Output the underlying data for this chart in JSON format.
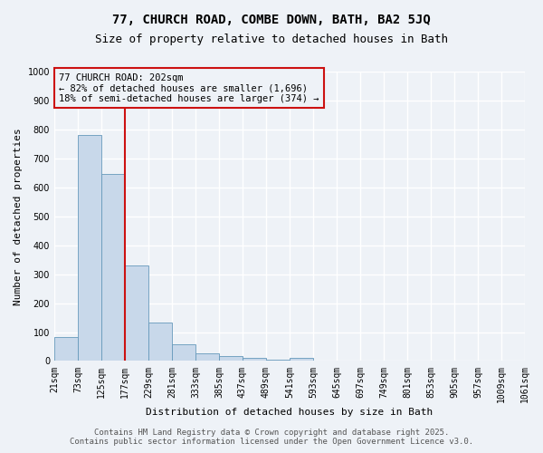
{
  "title1": "77, CHURCH ROAD, COMBE DOWN, BATH, BA2 5JQ",
  "title2": "Size of property relative to detached houses in Bath",
  "xlabel": "Distribution of detached houses by size in Bath",
  "ylabel": "Number of detached properties",
  "bar_values": [
    84,
    780,
    645,
    330,
    133,
    58,
    25,
    18,
    10,
    5,
    10,
    0,
    0,
    0,
    0,
    0,
    0,
    0,
    0,
    0
  ],
  "bar_color": "#c8d8ea",
  "bar_edge_color": "#6699bb",
  "x_labels": [
    "21sqm",
    "73sqm",
    "125sqm",
    "177sqm",
    "229sqm",
    "281sqm",
    "333sqm",
    "385sqm",
    "437sqm",
    "489sqm",
    "541sqm",
    "593sqm",
    "645sqm",
    "697sqm",
    "749sqm",
    "801sqm",
    "853sqm",
    "905sqm",
    "957sqm",
    "1009sqm",
    "1061sqm"
  ],
  "ylim": [
    0,
    1000
  ],
  "yticks": [
    0,
    100,
    200,
    300,
    400,
    500,
    600,
    700,
    800,
    900,
    1000
  ],
  "red_line_x": 3.0,
  "annotation_text": "77 CHURCH ROAD: 202sqm\n← 82% of detached houses are smaller (1,696)\n18% of semi-detached houses are larger (374) →",
  "footer_text": "Contains HM Land Registry data © Crown copyright and database right 2025.\nContains public sector information licensed under the Open Government Licence v3.0.",
  "background_color": "#eef2f7",
  "grid_color": "#ffffff",
  "title_fontsize": 10,
  "subtitle_fontsize": 9,
  "axis_label_fontsize": 8,
  "tick_fontsize": 7,
  "annotation_fontsize": 7.5,
  "footer_fontsize": 6.5
}
